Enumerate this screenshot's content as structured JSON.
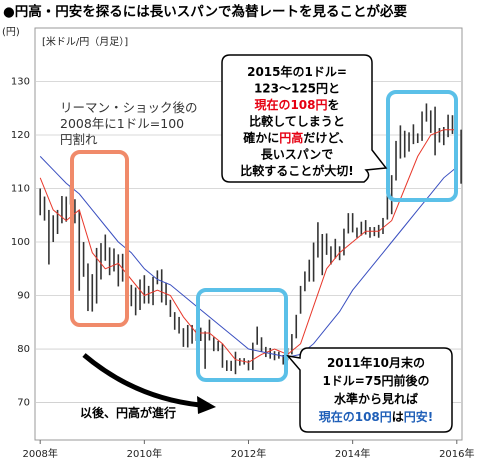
{
  "chart_data": {
    "type": "range",
    "title": "●円高・円安を探るには長いスパンで為替レートを見ることが必要",
    "y_unit": "(円)",
    "subtitle": "[米ドル/円（月足）]",
    "xlim": [
      2007.9,
      2016.1
    ],
    "ylim": [
      63,
      140
    ],
    "xticks": [
      {
        "value": 2008,
        "label": "2008年"
      },
      {
        "value": 2010,
        "label": "2010年"
      },
      {
        "value": 2012,
        "label": "2012年"
      },
      {
        "value": 2014,
        "label": "2014年"
      },
      {
        "value": 2016,
        "label": "2016年"
      }
    ],
    "yticks": [
      70,
      80,
      90,
      100,
      110,
      120,
      130
    ],
    "grid": true,
    "bar_color": "#333333",
    "x": [
      2008,
      2008.083,
      2008.167,
      2008.25,
      2008.333,
      2008.417,
      2008.5,
      2008.583,
      2008.667,
      2008.75,
      2008.833,
      2008.917,
      2009,
      2009.083,
      2009.167,
      2009.25,
      2009.333,
      2009.417,
      2009.5,
      2009.583,
      2009.667,
      2009.75,
      2009.833,
      2009.917,
      2010,
      2010.083,
      2010.167,
      2010.25,
      2010.333,
      2010.417,
      2010.5,
      2010.583,
      2010.667,
      2010.75,
      2010.833,
      2010.917,
      2011,
      2011.083,
      2011.167,
      2011.25,
      2011.333,
      2011.417,
      2011.5,
      2011.583,
      2011.667,
      2011.75,
      2011.833,
      2011.917,
      2012,
      2012.083,
      2012.167,
      2012.25,
      2012.333,
      2012.417,
      2012.5,
      2012.583,
      2012.667,
      2012.75,
      2012.833,
      2012.917,
      2013,
      2013.083,
      2013.167,
      2013.25,
      2013.333,
      2013.417,
      2013.5,
      2013.583,
      2013.667,
      2013.75,
      2013.833,
      2013.917,
      2014,
      2014.083,
      2014.167,
      2014.25,
      2014.333,
      2014.417,
      2014.5,
      2014.583,
      2014.667,
      2014.75,
      2014.833,
      2014.917,
      2015,
      2015.083,
      2015.167,
      2015.25,
      2015.333,
      2015.417,
      2015.5,
      2015.583,
      2015.667,
      2015.75,
      2015.833,
      2015.917,
      2016,
      2016.083
    ],
    "high": [
      110,
      108.5,
      106,
      105,
      106,
      108.6,
      108.5,
      110.6,
      108,
      106,
      100,
      96,
      94,
      98.9,
      99.8,
      101.4,
      99,
      98.8,
      97.7,
      97.8,
      93.5,
      92,
      91.5,
      93,
      93.8,
      91.8,
      93.5,
      94.7,
      94.9,
      92.4,
      89.2,
      86.9,
      86,
      83.9,
      84.5,
      84.5,
      83.7,
      84,
      83.3,
      85.5,
      82.2,
      81.5,
      81,
      77.9,
      77.8,
      79.5,
      78.3,
      78.3,
      77.9,
      81.2,
      84.2,
      82.2,
      80.4,
      80.2,
      79.6,
      79.5,
      78.9,
      80.2,
      82.8,
      86.4,
      91.8,
      94.5,
      96.7,
      99.9,
      103.7,
      101.5,
      101.6,
      99.2,
      100.6,
      99.2,
      102.5,
      105.4,
      105.4,
      102.7,
      103.8,
      104.1,
      102.8,
      102.8,
      103.2,
      104.5,
      110.1,
      112.5,
      118.9,
      121.8,
      120.8,
      120.5,
      122,
      120.3,
      124.4,
      125.9,
      124.6,
      125.3,
      121.3,
      121.5,
      123.8,
      123.7,
      121.7,
      121
    ],
    "low": [
      105,
      104,
      95.8,
      100,
      101.5,
      103.5,
      103.8,
      107,
      103.5,
      90.9,
      93.5,
      87.1,
      87,
      88.5,
      93,
      96.5,
      93.8,
      94.5,
      91.7,
      92.6,
      88.2,
      88,
      86.3,
      87.3,
      88.5,
      88.5,
      88.2,
      92.1,
      88.7,
      88.2,
      86,
      83.6,
      82.9,
      80.4,
      80.3,
      81,
      81.5,
      81.5,
      76.3,
      81.6,
      79.6,
      79.6,
      76.5,
      75.9,
      75.9,
      75.3,
      76.9,
      77.1,
      76,
      76.1,
      80.8,
      79.5,
      78.5,
      78.2,
      77.9,
      78.2,
      77.1,
      77.9,
      79,
      82,
      86.6,
      90.8,
      92.6,
      92.6,
      97.1,
      93.8,
      97.6,
      95.8,
      96.9,
      96.6,
      97.5,
      101.6,
      101.8,
      100.8,
      101.2,
      101.4,
      100.8,
      101.1,
      100.8,
      101.5,
      104.2,
      105.2,
      111.5,
      115.6,
      115.8,
      116.9,
      118.3,
      118.5,
      118.9,
      122.5,
      120.4,
      116.2,
      118.6,
      118.1,
      119.6,
      120.2,
      115.9,
      110.9
    ],
    "series": [
      {
        "color": "#e8392c",
        "x": [
          2008,
          2008.25,
          2008.5,
          2008.75,
          2009,
          2009.25,
          2009.5,
          2009.75,
          2010,
          2010.25,
          2010.5,
          2010.75,
          2011,
          2011.25,
          2011.5,
          2011.75,
          2012,
          2012.25,
          2012.5,
          2012.75,
          2013,
          2013.25,
          2013.5,
          2013.75,
          2014,
          2014.25,
          2014.5,
          2014.75,
          2015,
          2015.25,
          2015.5,
          2015.75,
          2016
        ],
        "values": [
          112,
          106,
          104,
          106,
          98,
          95,
          96,
          93,
          90,
          91,
          90,
          86,
          83,
          83,
          81,
          78,
          77.5,
          79,
          80,
          79,
          81,
          88,
          95,
          98,
          100,
          102,
          102,
          104,
          110,
          116,
          120,
          121,
          121
        ]
      },
      {
        "color": "#3a4fc0",
        "x": [
          2008,
          2008.25,
          2008.5,
          2008.75,
          2009,
          2009.25,
          2009.5,
          2009.75,
          2010,
          2010.25,
          2010.5,
          2010.75,
          2011,
          2011.25,
          2011.5,
          2011.75,
          2012,
          2012.25,
          2012.5,
          2012.75,
          2013,
          2013.25,
          2013.5,
          2013.75,
          2014,
          2014.25,
          2014.5,
          2014.75,
          2015,
          2015.25,
          2015.5,
          2015.75,
          2016
        ],
        "values": [
          116,
          113.5,
          111,
          109,
          106,
          103,
          100,
          98,
          95,
          93,
          92,
          90,
          88,
          86,
          84,
          82,
          80,
          79.5,
          79,
          78.5,
          79,
          81,
          84,
          87,
          91,
          94,
          97,
          100,
          103,
          106,
          109,
          112,
          114
        ]
      }
    ],
    "annotations": [
      {
        "lines": [
          [
            "リーマン・ショック後の"
          ],
          [
            "2008年に1ドル=100"
          ],
          [
            "円割れ"
          ]
        ]
      },
      {
        "lines": [
          [
            "2015年の1ドル="
          ],
          [
            "123～125円と"
          ],
          [
            {
              "text": "現在の108円",
              "color": "#e60012"
            },
            "を"
          ],
          [
            "比較してしまうと"
          ],
          [
            "確かに",
            {
              "text": "円高",
              "color": "#e60012"
            },
            "だけど、"
          ],
          [
            "長いスパンで"
          ],
          [
            "比較することが大切!"
          ]
        ]
      },
      {
        "lines": [
          [
            "2011年10月末の"
          ],
          [
            "1ドル=75円前後の"
          ],
          [
            "水準から見れば"
          ],
          [
            {
              "text": "現在の108円",
              "color": "#1f5fb8"
            },
            "は",
            {
              "text": "円安!",
              "color": "#1f5fb8"
            }
          ]
        ]
      },
      {
        "lines": [
          [
            "以後、円高が進行"
          ]
        ]
      }
    ]
  }
}
